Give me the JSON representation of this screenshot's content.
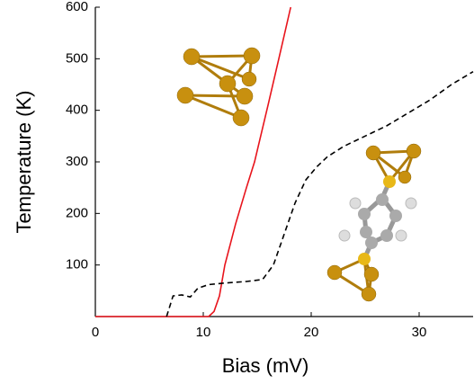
{
  "chart_data": {
    "type": "line",
    "x_label": "Bias (mV)",
    "y_label": "Temperature (K)",
    "xlim": [
      0,
      35
    ],
    "xticks": [
      0,
      10,
      20,
      30
    ],
    "ylim": [
      0,
      600
    ],
    "yticks": [
      100,
      200,
      300,
      400,
      500,
      600
    ],
    "series": [
      {
        "color": "#e8141c",
        "dash": "solid",
        "x": [
          0,
          10.5,
          11,
          11.5,
          12,
          13,
          14,
          14.75,
          16,
          17,
          18.1
        ],
        "values": [
          0,
          0,
          10,
          40,
          100,
          180,
          250,
          300,
          410,
          500,
          600
        ]
      },
      {
        "color": "#000000",
        "dash": "dashed",
        "x": [
          0,
          6.6,
          7.2,
          8,
          8.8,
          9.5,
          10.5,
          12,
          14,
          15.5,
          16.5,
          17.5,
          18.5,
          19.5,
          20.5,
          21.5,
          23,
          25,
          27,
          29,
          31,
          33,
          35
        ],
        "values": [
          null,
          0,
          40,
          42,
          38,
          55,
          62,
          65,
          68,
          72,
          100,
          160,
          220,
          265,
          290,
          310,
          330,
          350,
          370,
          395,
          420,
          450,
          475
        ]
      }
    ]
  }
}
